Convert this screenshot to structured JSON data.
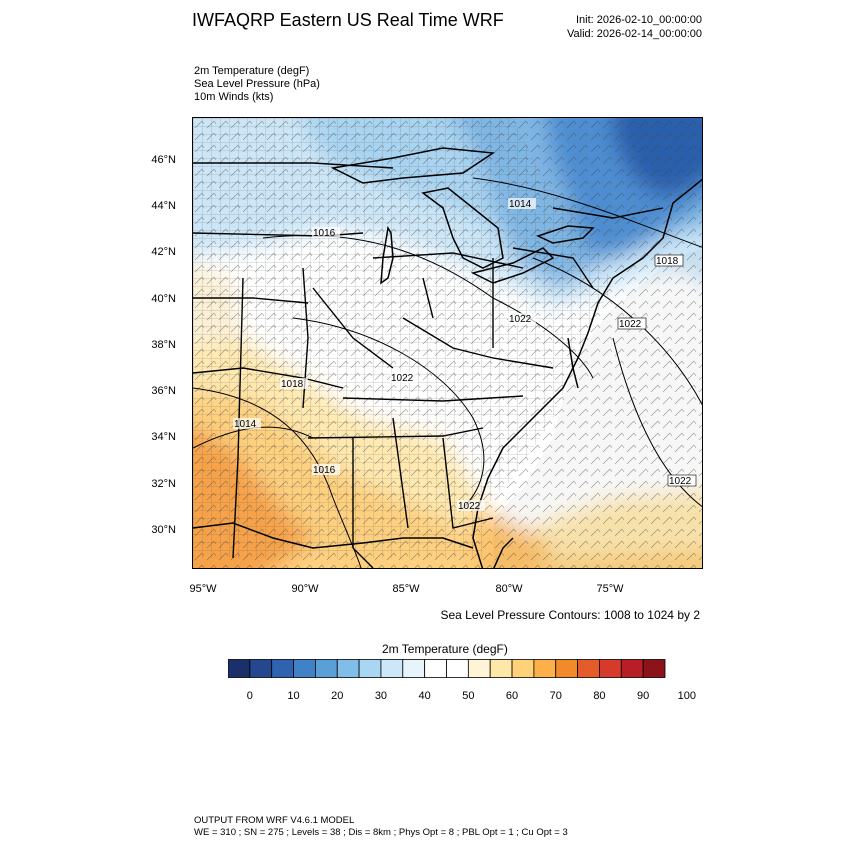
{
  "header": {
    "title": "IWFAQRP Eastern US Real Time WRF",
    "init": "Init: 2026-02-10_00:00:00",
    "valid": "Valid: 2026-02-14_00:00:00"
  },
  "fields": {
    "temperature": "2m Temperature   (degF)",
    "pressure": "Sea Level Pressure   (hPa)",
    "winds": "10m Winds   (kts)"
  },
  "axes": {
    "lat_labels": [
      "46°N",
      "44°N",
      "42°N",
      "40°N",
      "38°N",
      "36°N",
      "34°N",
      "32°N",
      "30°N"
    ],
    "lon_labels": [
      "95°W",
      "90°W",
      "85°W",
      "80°W",
      "75°W"
    ]
  },
  "isobar_labels": [
    "1014",
    "1016",
    "1018",
    "1022",
    "1022",
    "1022",
    "1018",
    "1014",
    "1016",
    "1022",
    "1022"
  ],
  "contour_note": "Sea Level Pressure Contours: 1008 to 1024 by 2",
  "colorbar": {
    "title": "2m Temperature  (degF)",
    "labels": [
      "0",
      "10",
      "20",
      "30",
      "40",
      "50",
      "60",
      "70",
      "80",
      "90",
      "100"
    ],
    "colors": [
      "#1b2f6b",
      "#24478f",
      "#2f62b0",
      "#3f82c8",
      "#5aa0d8",
      "#80bde8",
      "#a8d6f3",
      "#cce7f8",
      "#e8f4fc",
      "#ffffff",
      "#ffffff",
      "#fff4d6",
      "#ffe7a8",
      "#ffd27a",
      "#fdb04a",
      "#f28a2a",
      "#e55b2a",
      "#d63a2a",
      "#b81f25",
      "#8c1318"
    ]
  },
  "footer": {
    "line1": "OUTPUT FROM WRF V4.6.1 MODEL",
    "line2": "WE = 310 ; SN = 275 ; Levels = 38 ; Dis = 8km ; Phys Opt = 8 ; PBL Opt = 1 ; Cu Opt = 3"
  }
}
